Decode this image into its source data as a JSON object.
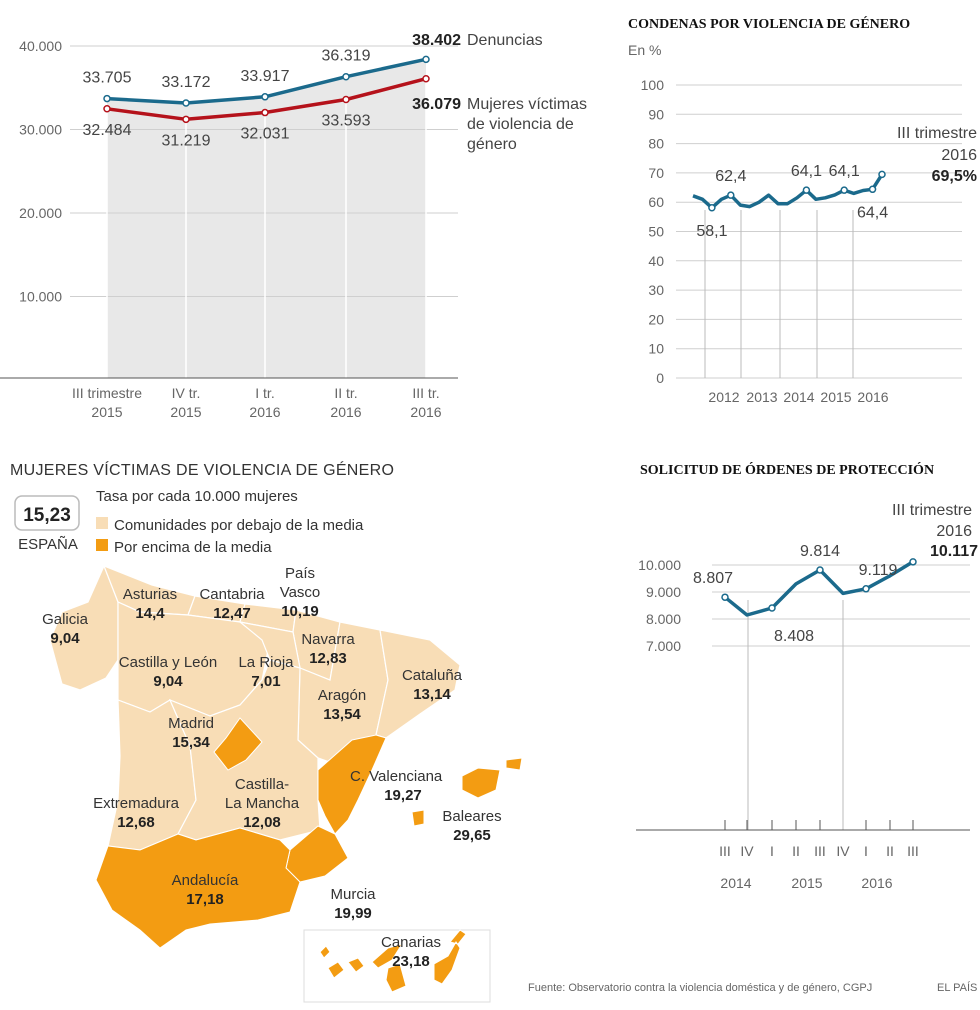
{
  "chart_data": [
    {
      "type": "line",
      "categories": [
        "III trimestre 2015",
        "IV tr. 2015",
        "I tr. 2016",
        "II tr. 2016",
        "III tr. 2016"
      ],
      "x_tick_lines": [
        [
          "III trimestre",
          "2015"
        ],
        [
          "IV tr.",
          "2015"
        ],
        [
          "I tr.",
          "2016"
        ],
        [
          "II tr.",
          "2016"
        ],
        [
          "III tr.",
          "2016"
        ]
      ],
      "y_ticks": [
        "40.000",
        "30.000",
        "20.000",
        "10.000"
      ],
      "y_tick_values": [
        40000,
        30000,
        20000,
        10000
      ],
      "ylim": [
        0,
        40000
      ],
      "series": [
        {
          "name": "Denuncias",
          "values": [
            33705,
            33172,
            33917,
            36319,
            38402
          ],
          "labels": [
            "33.705",
            "33.172",
            "33.917",
            "36.319",
            "38.402"
          ],
          "color": "#1b6a8c"
        },
        {
          "name": "Mujeres víctimas de violencia de género",
          "values": [
            32484,
            31219,
            32031,
            33593,
            36079
          ],
          "labels": [
            "32.484",
            "31.219",
            "32.031",
            "33.593",
            "36.079"
          ],
          "color": "#b5121b"
        }
      ],
      "legend": {
        "denuncias": "Denuncias",
        "victimas_lines": [
          "Mujeres víctimas",
          "de violencia de",
          "género"
        ]
      }
    },
    {
      "type": "line",
      "title": "CONDENAS POR VIOLENCIA DE GÉNERO",
      "ylabel": "En %",
      "ylim": [
        0,
        100
      ],
      "y_ticks": [
        "100",
        "90",
        "80",
        "70",
        "60",
        "50",
        "40",
        "30",
        "20",
        "10",
        "0"
      ],
      "x_ticks": [
        "2012",
        "2013",
        "2014",
        "2015",
        "2016"
      ],
      "series": [
        {
          "name": "Condenas (%)",
          "color": "#1b6a8c",
          "values": [
            62.2,
            61,
            58.1,
            61,
            62.4,
            59,
            58.5,
            60,
            62.4,
            59.5,
            59.5,
            61.5,
            64.1,
            61,
            61.5,
            62.5,
            64.1,
            63,
            64,
            64.4,
            69.5
          ]
        }
      ],
      "annotations": [
        {
          "text": "62,4",
          "index": 4
        },
        {
          "text": "58,1",
          "index": 2
        },
        {
          "text": "64,1",
          "index": 12
        },
        {
          "text": "64,1",
          "index": 16
        },
        {
          "text": "64,4",
          "index": 19
        }
      ],
      "final": {
        "line1": "III trimestre",
        "line2": "2016",
        "value": "69,5%"
      }
    },
    {
      "type": "line",
      "title": "SOLICITUD DE ÓRDENES DE PROTECCIÓN",
      "ylim": [
        7000,
        10000
      ],
      "y_ticks": [
        "10.000",
        "9.000",
        "8.000",
        "7.000"
      ],
      "y_tick_values": [
        10000,
        9000,
        8000,
        7000
      ],
      "quarters": [
        "III",
        "IV",
        "I",
        "II",
        "III",
        "IV",
        "I",
        "II",
        "III"
      ],
      "years": [
        "2014",
        "2015",
        "2016"
      ],
      "series": [
        {
          "name": "Órdenes de protección",
          "color": "#1b6a8c",
          "values": [
            8807,
            8150,
            8408,
            9300,
            9814,
            8950,
            9119,
            9600,
            10117
          ]
        }
      ],
      "annotations": [
        {
          "text": "8.807",
          "index": 0
        },
        {
          "text": "8.408",
          "index": 2
        },
        {
          "text": "9.814",
          "index": 4
        },
        {
          "text": "9.119",
          "index": 6
        }
      ],
      "final": {
        "line1": "III trimestre",
        "line2": "2016",
        "value": "10.117"
      }
    }
  ],
  "map": {
    "title": "MUJERES VÍCTIMAS DE VIOLENCIA DE GÉNERO",
    "subtitle": "Tasa por cada 10.000 mujeres",
    "spain_value": "15,23",
    "spain_label": "ESPAÑA",
    "legend_below": "Comunidades por debajo de la media",
    "legend_above": "Por encima de la media",
    "color_below": "#f8ddb6",
    "color_above": "#f39c12",
    "regions": [
      {
        "lines": [
          "Galicia"
        ],
        "value": "9,04"
      },
      {
        "lines": [
          "Asturias"
        ],
        "value": "14,4"
      },
      {
        "lines": [
          "Cantabria"
        ],
        "value": "12,47"
      },
      {
        "lines": [
          "País",
          "Vasco"
        ],
        "value": "10,19"
      },
      {
        "lines": [
          "Navarra"
        ],
        "value": "12,83"
      },
      {
        "lines": [
          "Castilla y León"
        ],
        "value": "9,04"
      },
      {
        "lines": [
          "La Rioja"
        ],
        "value": "7,01"
      },
      {
        "lines": [
          "Cataluña"
        ],
        "value": "13,14"
      },
      {
        "lines": [
          "Aragón"
        ],
        "value": "13,54"
      },
      {
        "lines": [
          "Madrid"
        ],
        "value": "15,34"
      },
      {
        "lines": [
          "Castilla-",
          "La Mancha"
        ],
        "value": "12,08"
      },
      {
        "lines": [
          "C. Valenciana"
        ],
        "value": "19,27"
      },
      {
        "lines": [
          "Extremadura"
        ],
        "value": "12,68"
      },
      {
        "lines": [
          "Baleares"
        ],
        "value": "29,65"
      },
      {
        "lines": [
          "Andalucía"
        ],
        "value": "17,18"
      },
      {
        "lines": [
          "Murcia"
        ],
        "value": "19,99"
      },
      {
        "lines": [
          "Canarias"
        ],
        "value": "23,18"
      }
    ]
  },
  "footer": {
    "source": "Fuente: Observatorio contra la violencia doméstica y de género, CGPJ",
    "brand": "EL PAÍS"
  }
}
